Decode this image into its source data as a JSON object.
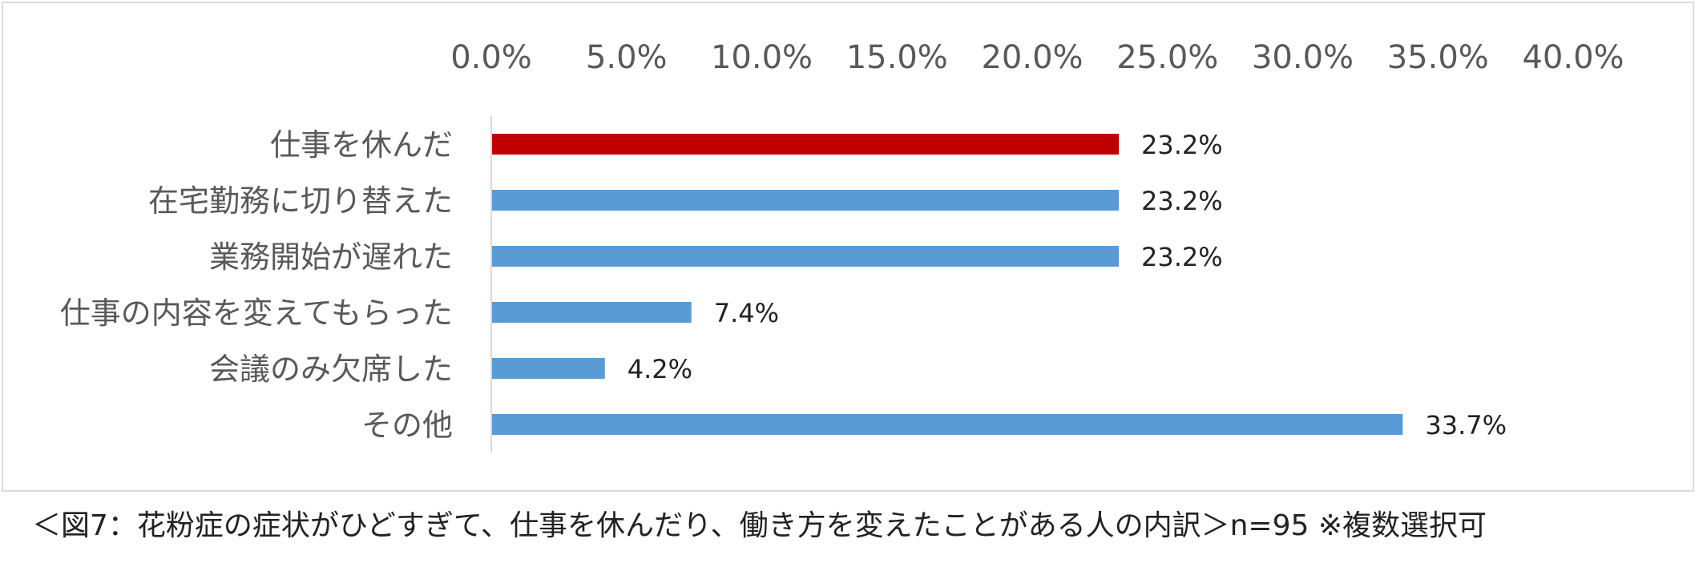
{
  "caption": "＜図7：花粉症の症状がひどすぎて、仕事を休んだり、働き方を変えたことがある人の内訳＞n=95 ※複数選択可",
  "colors": {
    "highlight": "#C00000",
    "bar": "#5B9BD5",
    "tick_text": "#595959",
    "label_text": "#595959",
    "value_text": "#222222",
    "axis": "#d9d9d9"
  },
  "chart_data": {
    "type": "bar",
    "orientation": "horizontal",
    "title": "",
    "xlabel": "",
    "ylabel": "",
    "xlim": [
      0,
      40
    ],
    "x_ticks": [
      "0.0%",
      "5.0%",
      "10.0%",
      "15.0%",
      "20.0%",
      "25.0%",
      "30.0%",
      "35.0%",
      "40.0%"
    ],
    "x_axis_position": "top",
    "grid": false,
    "legend": "none",
    "categories": [
      "仕事を休んだ",
      "在宅勤務に切り替えた",
      "業務開始が遅れた",
      "仕事の内容を変えてもらった",
      "会議のみ欠席した",
      "その他"
    ],
    "values": [
      23.2,
      23.2,
      23.2,
      7.4,
      4.2,
      33.7
    ],
    "value_labels": [
      "23.2%",
      "23.2%",
      "23.2%",
      "7.4%",
      "4.2%",
      "33.7%"
    ],
    "highlight_index": 0
  }
}
